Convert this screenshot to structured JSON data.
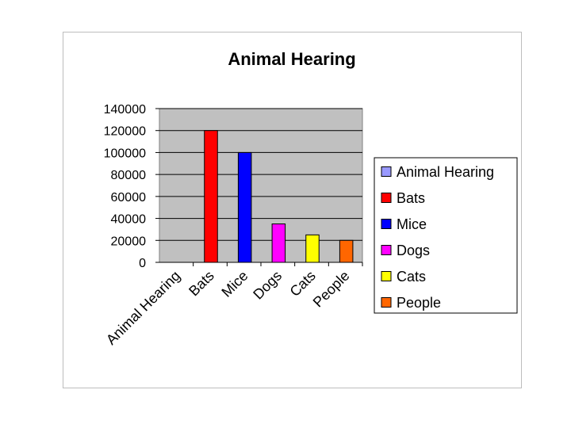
{
  "chart_data": {
    "type": "bar",
    "title": "Animal Hearing",
    "xlabel": "",
    "ylabel": "",
    "categories": [
      "Animal Hearing",
      "Bats",
      "Mice",
      "Dogs",
      "Cats",
      "People"
    ],
    "values": [
      0,
      120000,
      100000,
      35000,
      25000,
      20000
    ],
    "colors": [
      "#9999ff",
      "#ff0000",
      "#0000ff",
      "#ff00ff",
      "#ffff00",
      "#ff6600"
    ],
    "ylim": [
      0,
      140000
    ],
    "yticks": [
      "0",
      "20000",
      "40000",
      "60000",
      "80000",
      "100000",
      "120000",
      "140000"
    ],
    "plot_background": "#c0c0c0",
    "grid": true,
    "legend": {
      "position": "right",
      "entries": [
        "Animal Hearing",
        "Bats",
        "Mice",
        "Dogs",
        "Cats",
        "People"
      ]
    }
  }
}
